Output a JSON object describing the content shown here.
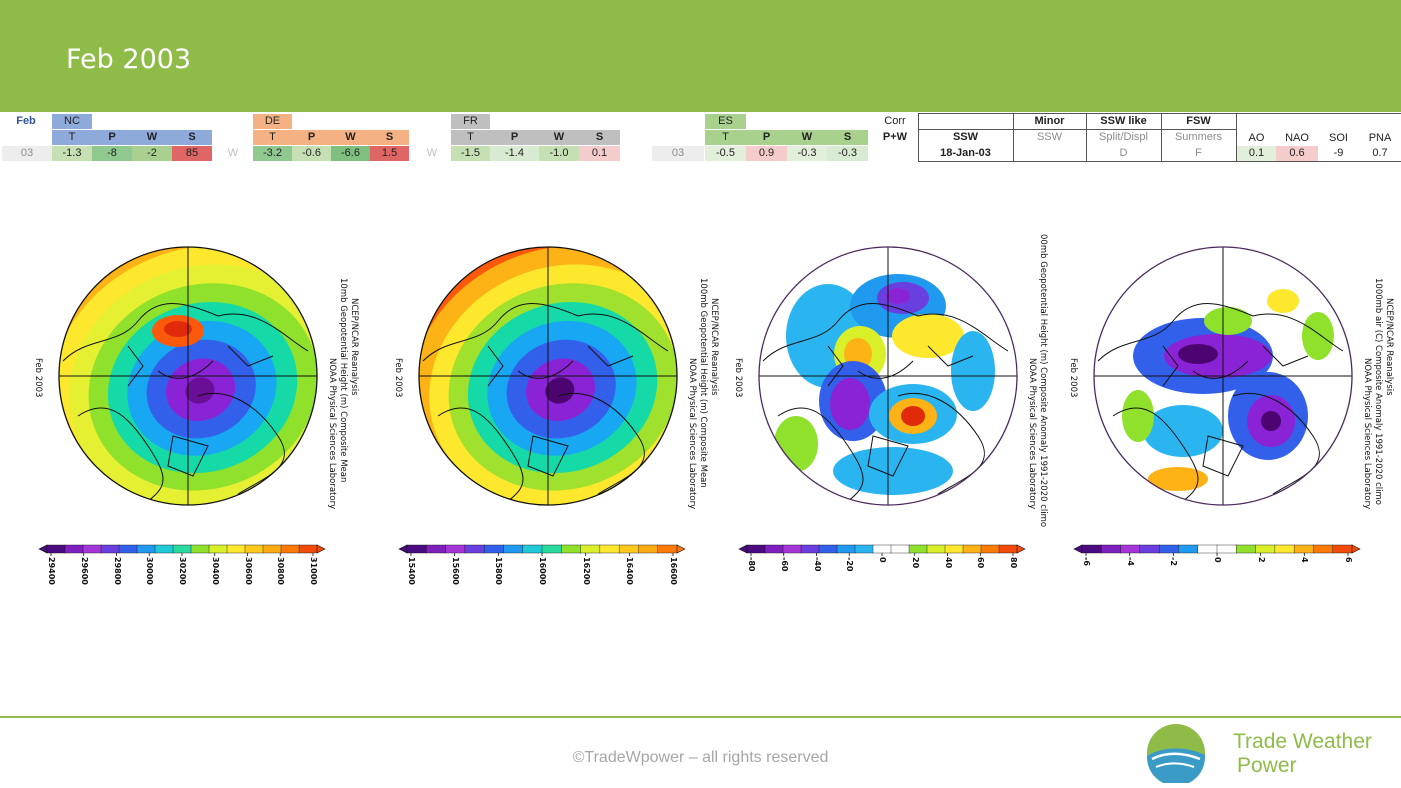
{
  "title": "Feb 2003",
  "table": {
    "month_label": "Feb",
    "year": "03",
    "w_mark": "W",
    "regions": [
      {
        "name": "NC",
        "cols": [
          "T",
          "P",
          "W",
          "S"
        ],
        "values": [
          "-1.3",
          "-8",
          "-2",
          "85"
        ],
        "header_color": "#8eaadb",
        "value_colors": [
          "#c6e0b4",
          "#8fc98f",
          "#a9d08e",
          "#e06666"
        ]
      },
      {
        "name": "DE",
        "cols": [
          "T",
          "P",
          "W",
          "S"
        ],
        "values": [
          "-3.2",
          "-0.6",
          "-6.6",
          "1.5"
        ],
        "header_color": "#f4b183",
        "value_colors": [
          "#8fc98f",
          "#c6e0b4",
          "#7fbf7f",
          "#e06666"
        ]
      },
      {
        "name": "FR",
        "cols": [
          "T",
          "P",
          "W",
          "S"
        ],
        "values": [
          "-1.5",
          "-1.4",
          "-1.0",
          "0.1"
        ],
        "header_color": "#bfbfbf",
        "value_colors": [
          "#c6e0b4",
          "#d9ead3",
          "#c6e0b4",
          "#f4cccc"
        ]
      },
      {
        "name": "ES",
        "cols": [
          "T",
          "P",
          "W",
          "S"
        ],
        "values": [
          "-0.5",
          "0.9",
          "-0.3",
          "-0.3"
        ],
        "header_color": "#a9d18e",
        "value_colors": [
          "#e2efda",
          "#f4cccc",
          "#e2efda",
          "#d9ead3"
        ]
      }
    ],
    "corr_label": "Corr",
    "pw_label": "P+W",
    "ssw_label": "SSW",
    "ssw_date": "18-Jan-03",
    "minor_label": "Minor",
    "minor_sub": "SSW",
    "sswlike_label": "SSW like",
    "sswlike_sub": "Split/Displ",
    "sswlike_value": "D",
    "fsw_label": "FSW",
    "fsw_sub": "Summers",
    "fsw_value": "F",
    "indices": [
      {
        "name": "AO",
        "value": "0.1"
      },
      {
        "name": "NAO",
        "value": "0.6"
      },
      {
        "name": "SOI",
        "value": "-9"
      },
      {
        "name": "PNA",
        "value": "0.7"
      }
    ]
  },
  "maps": [
    {
      "left_label": "Feb 2003",
      "right_title": "NCEP/NCAR Reanalysis",
      "right_line2": "10mb Geopotential Height (m) Composite Mean",
      "right_line3": "NOAA Physical Sciences Laboratory",
      "ticks": [
        "29400",
        "29600",
        "29800",
        "30000",
        "30200",
        "30400",
        "30600",
        "30800",
        "31000"
      ]
    },
    {
      "left_label": "Feb 2003",
      "right_title": "NCEP/NCAR Reanalysis",
      "right_line2": "100mb Geopotential Height (m) Composite Mean",
      "right_line3": "NOAA Physical Sciences Laboratory",
      "ticks": [
        "15400",
        "15600",
        "15800",
        "16000",
        "16200",
        "16400",
        "16600"
      ]
    },
    {
      "left_label": "Feb 2003",
      "right_title": "",
      "right_line2": "00mb Geopotential Height (m) Composite Anomaly 1991-2020 climo",
      "right_line3": "NOAA Physical Sciences Laboratory",
      "ticks": [
        "-80",
        "-60",
        "-40",
        "-20",
        "0",
        "20",
        "40",
        "60",
        "80"
      ]
    },
    {
      "left_label": "Feb 2003",
      "right_title": "NCEP/NCAR Reanalysis",
      "right_line2": "1000mb air (C) Composite Anomaly 1991-2020 climo",
      "right_line3": "NOAA Physical Sciences Laboratory",
      "ticks": [
        "-6",
        "-4",
        "-2",
        "0",
        "2",
        "4",
        "6"
      ]
    }
  ],
  "footer": {
    "copyright": "©TradeWpower – all rights reserved",
    "logo_line1": "Trade Weather",
    "logo_line2": "Power"
  }
}
